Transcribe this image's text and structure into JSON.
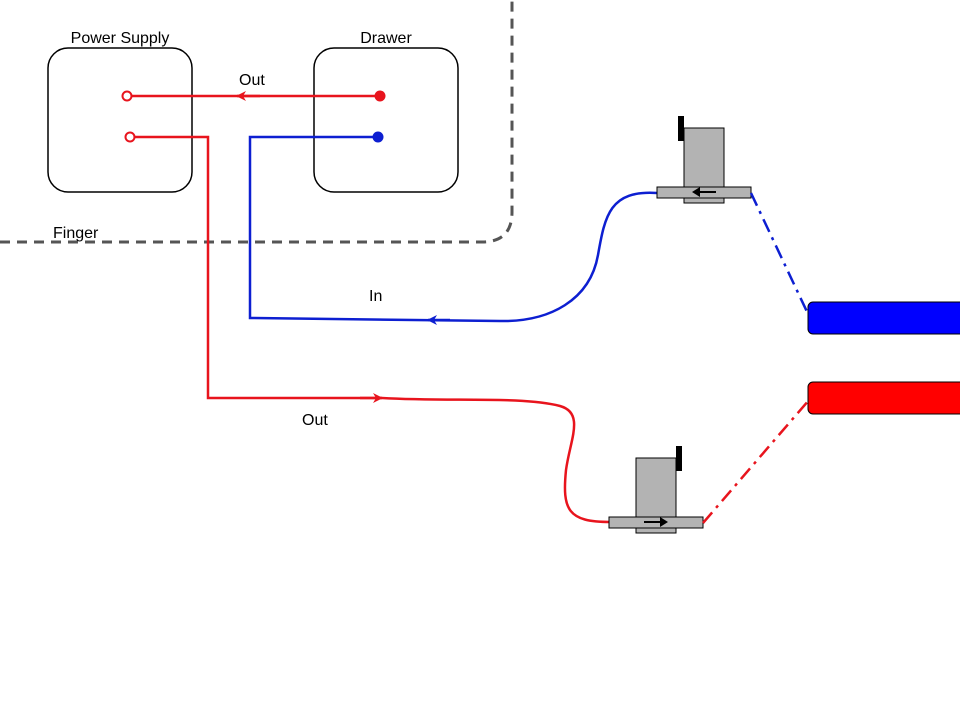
{
  "colors": {
    "red": "#e8141d",
    "blue": "#0d1fd1",
    "valve_body": "#b3b3b3",
    "tube_red": "#ff0000",
    "tube_blue": "#0000ff",
    "region_border": "#555555"
  },
  "labels": {
    "power_supply": "Power Supply",
    "drawer": "Drawer",
    "finger": "Finger",
    "out_top": "Out",
    "in_middle": "In",
    "out_bottom": "Out"
  },
  "valves": {
    "upper": {
      "direction": "left",
      "arrow_icon": "arrow-left-icon"
    },
    "lower": {
      "direction": "right",
      "arrow_icon": "arrow-right-icon"
    }
  }
}
